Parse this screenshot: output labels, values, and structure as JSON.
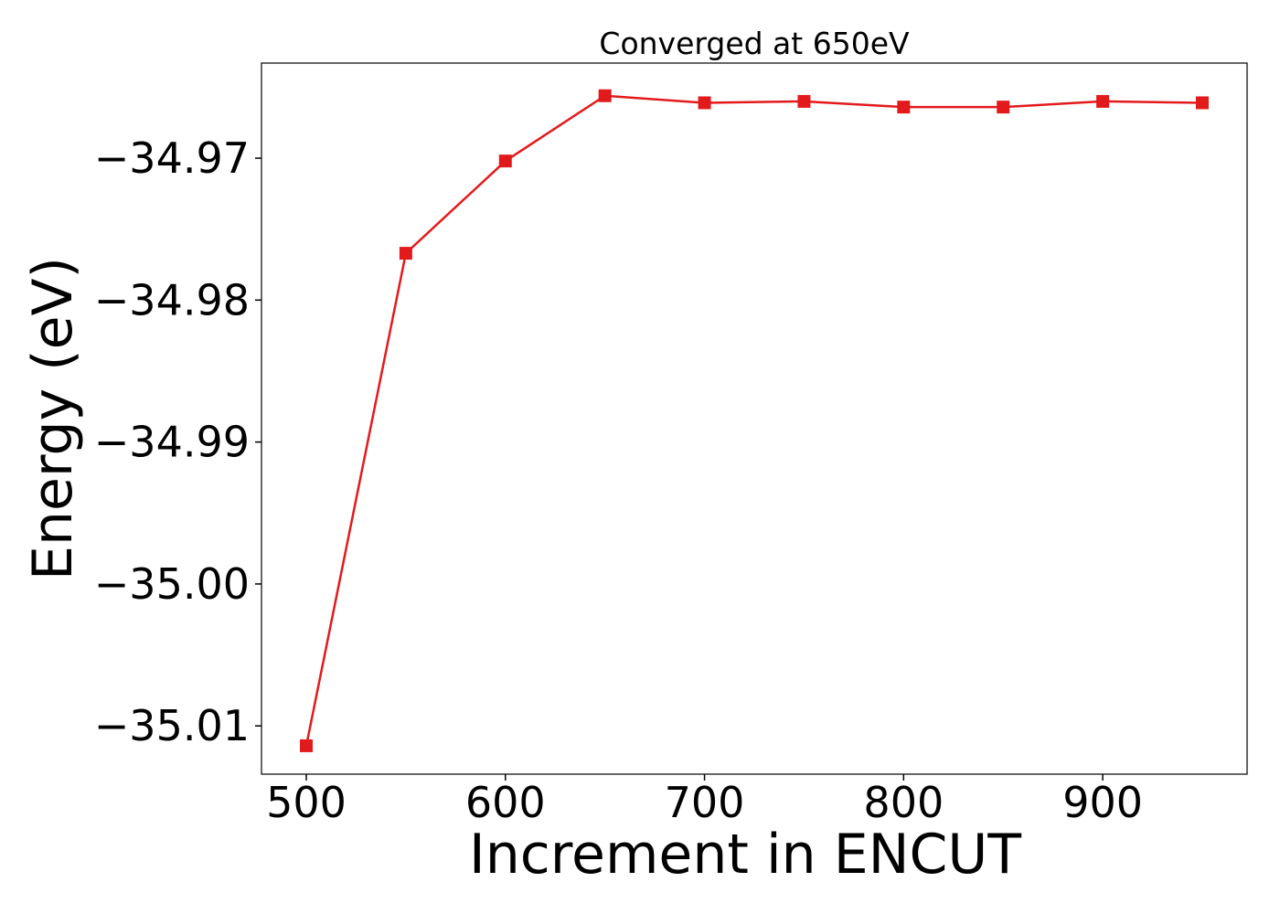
{
  "chart_data": {
    "type": "line",
    "title": "Converged at 650eV",
    "xlabel": "Increment in ENCUT",
    "ylabel": "Energy (eV)",
    "xlim": [
      477.5,
      972.5
    ],
    "ylim": [
      -35.0134,
      -34.9633
    ],
    "xticks": [
      500,
      600,
      700,
      800,
      900
    ],
    "xtick_labels": [
      "500",
      "600",
      "700",
      "800",
      "900"
    ],
    "yticks": [
      -34.97,
      -34.98,
      -34.99,
      -35.0,
      -35.01
    ],
    "ytick_labels": [
      "−34.97",
      "−34.98",
      "−34.99",
      "−35.00",
      "−35.01"
    ],
    "grid": false,
    "series": [
      {
        "color": "#e31a1c",
        "marker": "square",
        "x": [
          500,
          550,
          600,
          650,
          700,
          750,
          800,
          850,
          900,
          950
        ],
        "y": [
          -35.0114,
          -34.9767,
          -34.9702,
          -34.9656,
          -34.9661,
          -34.966,
          -34.9664,
          -34.9664,
          -34.966,
          -34.9661
        ]
      }
    ]
  }
}
